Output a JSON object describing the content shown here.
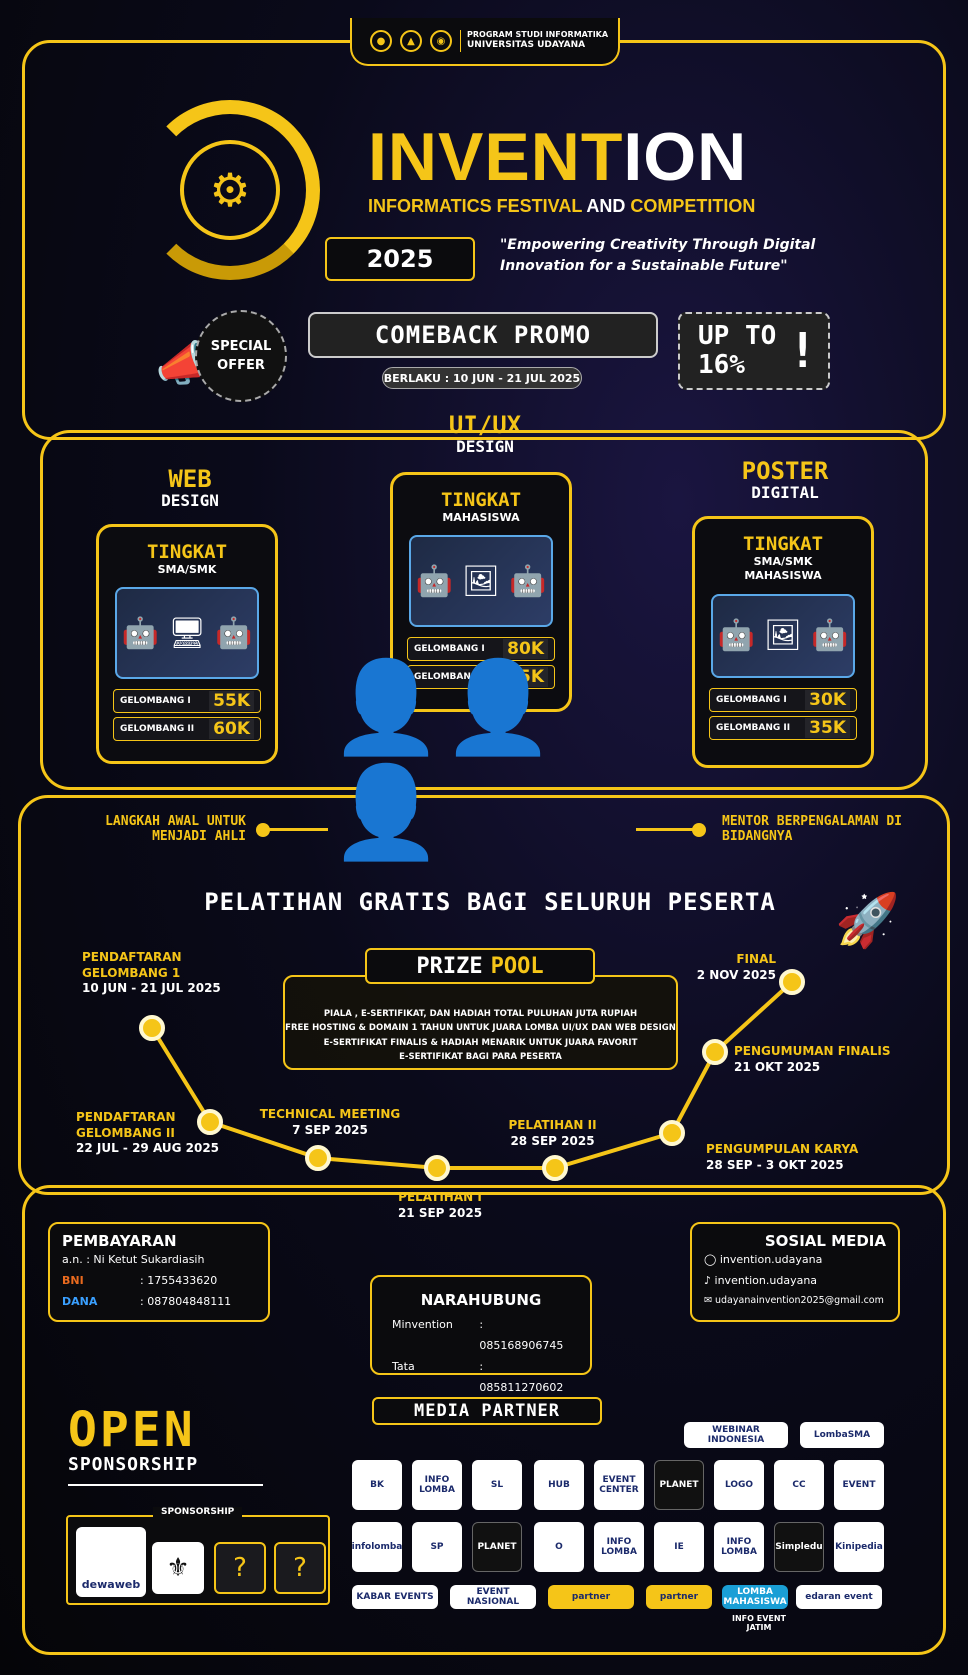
{
  "header": {
    "program": "PROGRAM STUDI INFORMATIKA",
    "university": "UNIVERSITAS UDAYANA"
  },
  "event": {
    "title_part1": "IN",
    "title_part2": "VENT",
    "title_part3": "ION",
    "subtitle_a": "INFORMATICS FESTIVAL ",
    "subtitle_b": "AND ",
    "subtitle_c": "COMPETITION",
    "year": "2025",
    "tagline": "\"Empowering Creativity Through Digital Innovation for a Sustainable Future\""
  },
  "promo": {
    "special": "SPECIAL",
    "offer": "OFFER",
    "label": "COMEBACK PROMO",
    "period": "BERLAKU : 10 JUN - 21 JUL 2025",
    "upto": "UP TO",
    "percent": "16%",
    "bang": "!"
  },
  "categories": [
    {
      "name": "WEB",
      "sub": "DESIGN",
      "tingkat": "TINGKAT",
      "level": "SMA/SMK",
      "level2": "",
      "g1_label": "GELOMBANG I",
      "g1_price": "55K",
      "g2_label": "GELOMBANG II",
      "g2_price": "60K"
    },
    {
      "name": "UI/UX",
      "sub": "DESIGN",
      "tingkat": "TINGKAT",
      "level": "MAHASISWA",
      "level2": "",
      "g1_label": "GELOMBANG I",
      "g1_price": "80K",
      "g2_label": "GELOMBANG II",
      "g2_price": "85K"
    },
    {
      "name": "POSTER",
      "sub": "DIGITAL",
      "tingkat": "TINGKAT",
      "level": "SMA/SMK",
      "level2": "MAHASISWA",
      "g1_label": "GELOMBANG I",
      "g1_price": "30K",
      "g2_label": "GELOMBANG II",
      "g2_price": "35K"
    }
  ],
  "training": {
    "left": "LANGKAH AWAL UNTUK MENJADI AHLI",
    "right": "MENTOR BERPENGALAMAN DI BIDANGNYA",
    "banner": "PELATIHAN GRATIS BAGI SELURUH PESERTA"
  },
  "prize": {
    "title_a": "PRIZE",
    "title_b": "POOL",
    "lines": [
      "PIALA , E-SERTIFIKAT, DAN HADIAH TOTAL PULUHAN JUTA RUPIAH",
      "FREE HOSTING & DOMAIN 1 TAHUN UNTUK JUARA LOMBA UI/UX DAN WEB DESIGN",
      "E-SERTIFIKAT FINALIS & HADIAH MENARIK UNTUK JUARA FAVORIT",
      "E-SERTIFIKAT BAGI PARA PESERTA"
    ]
  },
  "timeline": [
    {
      "title": "PENDAFTARAN GELOMBANG 1",
      "date": "10 JUN - 21 JUL 2025"
    },
    {
      "title": "PENDAFTARAN GELOMBANG II",
      "date": "22 JUL - 29 AUG 2025"
    },
    {
      "title": "TECHNICAL MEETING",
      "date": "7 SEP 2025"
    },
    {
      "title": "PELATIHAN I",
      "date": "21 SEP 2025"
    },
    {
      "title": "PELATIHAN II",
      "date": "28 SEP 2025"
    },
    {
      "title": "PENGUMPULAN KARYA",
      "date": "28 SEP - 3 OKT 2025"
    },
    {
      "title": "PENGUMUMAN FINALIS",
      "date": "21 OKT 2025"
    },
    {
      "title": "FINAL",
      "date": "2 NOV 2025"
    }
  ],
  "payment": {
    "title": "PEMBAYARAN",
    "an": "a.n. :  Ni Ketut Sukardiasih",
    "bank_label": "BNI",
    "bank_no": ": 1755433620",
    "dana_label": "DANA",
    "dana_no": ": 087804848111"
  },
  "contact": {
    "title": "NARAHUBUNG",
    "p1_name": "Minvention",
    "p1_no": ": 085168906745",
    "p2_name": "Tata",
    "p2_no": ": 085811270602"
  },
  "social": {
    "title": "SOSIAL MEDIA",
    "instagram": "invention.udayana",
    "tiktok": "invention.udayana",
    "email": "udayanainvention2025@gmail.com"
  },
  "sponsorship": {
    "open": "OPEN",
    "label": "SPONSORSHIP",
    "box_title": "SPONSORSHIP",
    "sponsor1": "dewaweb",
    "unknown": "?"
  },
  "media_partner": {
    "title": "MEDIA PARTNER",
    "row0": [
      "WEBINAR INDONESIA",
      "LombaSMA"
    ],
    "row1": [
      "BK",
      "INFO LOMBA",
      "SL",
      "HUB",
      "EVENT CENTER",
      "PLANET",
      "LOGO",
      "CC",
      "EVENT"
    ],
    "row2": [
      "infolomba",
      "SP",
      "PLANET",
      "O",
      "INFO LOMBA",
      "IE",
      "INFO LOMBA",
      "Simpledu",
      "Kinipedia"
    ],
    "row3": [
      "KABAR EVENTS",
      "EVENT NASIONAL",
      "partner",
      "partner",
      "LOMBA MAHASISWA",
      "INFO EVENT JATIM",
      "edaran event"
    ]
  }
}
